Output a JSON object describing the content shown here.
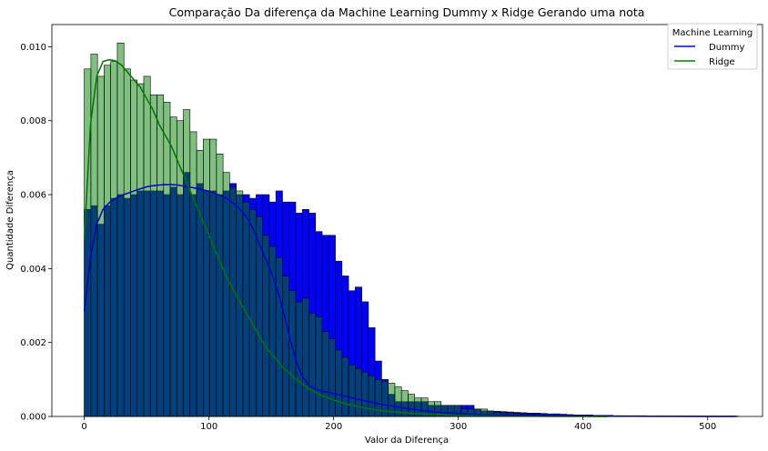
{
  "chart_data": {
    "type": "bar",
    "subtype": "histogram-with-kde",
    "title": "Comparação Da diferença da Machine Learning Dummy x Ridge Gerando uma nota",
    "xlabel": "Valor da Diferença",
    "ylabel": "Quantidade Diferença",
    "xlim": [
      -26,
      544
    ],
    "ylim": [
      0,
      0.0106
    ],
    "x_ticks": [
      0,
      100,
      200,
      300,
      400,
      500
    ],
    "y_ticks": [
      0.0,
      0.002,
      0.004,
      0.006,
      0.008,
      0.01
    ],
    "x_tick_labels": [
      "0",
      "100",
      "200",
      "300",
      "400",
      "500"
    ],
    "y_tick_labels": [
      "0.000",
      "0.002",
      "0.004",
      "0.006",
      "0.008",
      "0.010"
    ],
    "grid": false,
    "legend": {
      "title": "Machine Learning",
      "position": "upper-right"
    },
    "series": [
      {
        "name": "Dummy",
        "color": "#0000ff",
        "edge_color": "#000000",
        "bin_width": 5.3,
        "bin_start": 0,
        "density": [
          0.0056,
          0.0057,
          0.0052,
          0.0057,
          0.0059,
          0.006,
          0.0059,
          0.006,
          0.0061,
          0.0061,
          0.0061,
          0.0061,
          0.006,
          0.0062,
          0.006,
          0.0066,
          0.006,
          0.0063,
          0.0061,
          0.0061,
          0.006,
          0.0061,
          0.0063,
          0.006,
          0.006,
          0.0059,
          0.006,
          0.006,
          0.0058,
          0.0061,
          0.0058,
          0.0058,
          0.0055,
          0.0056,
          0.0055,
          0.005,
          0.0049,
          0.0049,
          0.0042,
          0.0038,
          0.0034,
          0.0035,
          0.0031,
          0.0024,
          0.0015,
          0.001,
          0.0006,
          0.0004,
          0.0004,
          0.0004,
          0.0004,
          0.0004,
          0.0003,
          0.0003,
          0.0003,
          0.0003,
          0.0003,
          0.0003,
          0.0003,
          0.0002,
          0.00015,
          0.00014,
          0.00014,
          0.00013,
          0.00012,
          0.00011,
          0.0001,
          9e-05,
          9e-05,
          8e-05,
          7e-05,
          7e-05,
          6e-05,
          5e-05,
          4e-05,
          4e-05,
          4e-05,
          3e-05,
          3e-05,
          3e-05,
          2e-05,
          2e-05,
          2e-05,
          2e-05,
          2e-05,
          1e-05,
          1e-05,
          1e-05,
          1e-05,
          1e-05,
          1e-05,
          1e-05,
          1e-05,
          1e-05,
          1e-05,
          1e-05,
          1e-05,
          1e-05,
          1e-05
        ]
      },
      {
        "name": "Ridge",
        "color": "#008000",
        "edge_color": "#000000",
        "bin_width": 5.3,
        "bin_start": 0,
        "density": [
          0.0094,
          0.0098,
          0.0092,
          0.0095,
          0.0096,
          0.0101,
          0.0094,
          0.0091,
          0.009,
          0.0092,
          0.0087,
          0.0087,
          0.0085,
          0.0081,
          0.008,
          0.0083,
          0.0077,
          0.0072,
          0.0075,
          0.0075,
          0.0071,
          0.0066,
          0.0062,
          0.0061,
          0.0058,
          0.0056,
          0.0054,
          0.0049,
          0.0046,
          0.0043,
          0.0038,
          0.0034,
          0.0031,
          0.0032,
          0.0028,
          0.0027,
          0.0023,
          0.0021,
          0.0018,
          0.0016,
          0.0014,
          0.0013,
          0.0012,
          0.0011,
          0.001,
          0.00095,
          0.0009,
          0.0008,
          0.0007,
          0.0006,
          0.0005,
          0.0005,
          0.0004,
          0.0004,
          0.0003,
          0.0003,
          0.0003,
          0.0002,
          0.0002,
          0.0002,
          0.0002,
          0.00015,
          0.00012,
          0.0001,
          0.0001,
          8e-05,
          7e-05,
          6e-05,
          5e-05,
          4e-05
        ]
      }
    ],
    "kde": [
      {
        "name": "Dummy",
        "color": "#0000cc",
        "x": [
          0,
          5,
          10,
          15,
          20,
          25,
          30,
          35,
          40,
          45,
          50,
          55,
          60,
          65,
          70,
          75,
          80,
          85,
          90,
          95,
          100,
          105,
          110,
          115,
          120,
          125,
          130,
          135,
          140,
          145,
          150,
          155,
          160,
          165,
          170,
          175,
          180,
          185,
          190,
          195,
          200,
          210,
          220,
          230,
          240,
          250,
          260,
          270,
          280,
          290,
          300,
          320,
          340,
          360,
          380,
          400,
          420,
          440,
          460,
          480,
          500,
          523
        ],
        "y": [
          0.00285,
          0.0043,
          0.0052,
          0.0056,
          0.00578,
          0.0059,
          0.00598,
          0.00604,
          0.0061,
          0.00616,
          0.00621,
          0.00624,
          0.00626,
          0.00627,
          0.00627,
          0.00626,
          0.00623,
          0.0062,
          0.00617,
          0.00613,
          0.00609,
          0.00603,
          0.00597,
          0.00588,
          0.00576,
          0.0056,
          0.0054,
          0.0051,
          0.0047,
          0.0043,
          0.0039,
          0.0034,
          0.0028,
          0.0021,
          0.0015,
          0.00107,
          0.00085,
          0.00074,
          0.00069,
          0.00066,
          0.00062,
          0.00054,
          0.00046,
          0.00039,
          0.00032,
          0.00026,
          0.00021,
          0.00017,
          0.00013,
          0.0001,
          8e-05,
          5e-05,
          4e-05,
          3e-05,
          2e-05,
          1.2e-05,
          8e-06,
          5e-06,
          3e-06,
          2e-06,
          1e-06,
          5e-07
        ]
      },
      {
        "name": "Ridge",
        "color": "#007700",
        "x": [
          0,
          5,
          10,
          15,
          20,
          25,
          30,
          35,
          40,
          45,
          50,
          55,
          60,
          65,
          70,
          75,
          80,
          85,
          90,
          95,
          100,
          105,
          110,
          115,
          120,
          125,
          130,
          135,
          140,
          145,
          150,
          160,
          170,
          180,
          190,
          200,
          210,
          220,
          230,
          240,
          250,
          260,
          270,
          280,
          290,
          300,
          320,
          340,
          360,
          380,
          400,
          420
        ],
        "y": [
          0.0048,
          0.0079,
          0.0092,
          0.0096,
          0.00965,
          0.00962,
          0.0095,
          0.0093,
          0.0091,
          0.0089,
          0.0086,
          0.0083,
          0.0079,
          0.0076,
          0.0073,
          0.0069,
          0.0065,
          0.0061,
          0.0057,
          0.0053,
          0.0049,
          0.0045,
          0.0041,
          0.0037,
          0.0034,
          0.0031,
          0.0028,
          0.0025,
          0.0022,
          0.0019,
          0.0017,
          0.0013,
          0.001,
          0.00075,
          0.00057,
          0.00044,
          0.00034,
          0.00026,
          0.0002,
          0.00015,
          0.00012,
          9e-05,
          7e-05,
          5e-05,
          4e-05,
          3e-05,
          1.8e-05,
          1e-05,
          6e-06,
          3e-06,
          2e-06,
          1e-06
        ]
      }
    ]
  }
}
